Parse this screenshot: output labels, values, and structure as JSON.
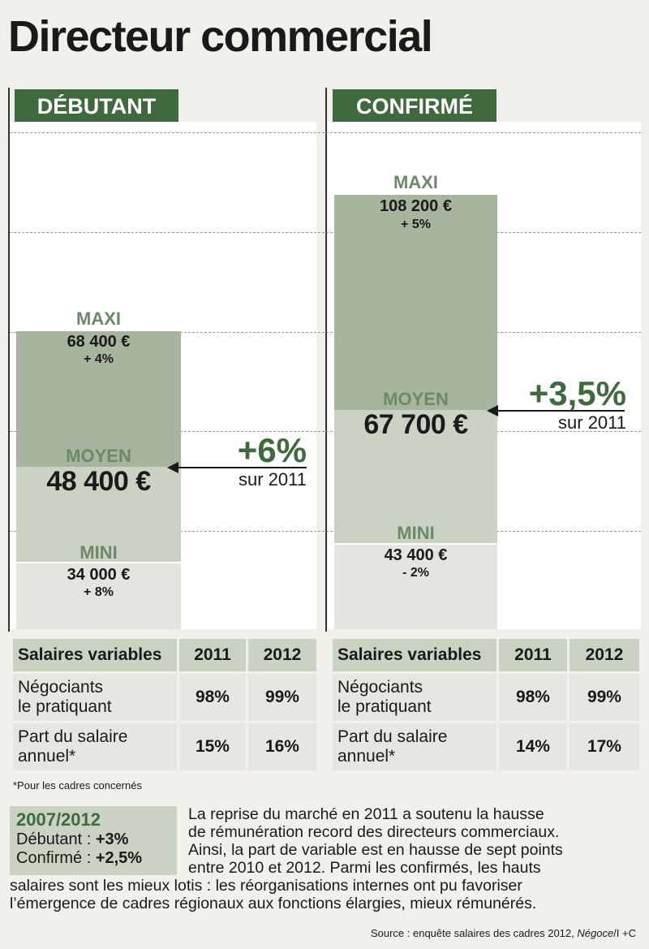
{
  "title": "Directeur commercial",
  "colors": {
    "dark_green": "#3f6a3d",
    "mid_green": "#a7b59f",
    "light_green": "#c9d2c3",
    "pale": "#e3e6de"
  },
  "chart_data": [
    {
      "type": "bar",
      "title": "DÉBUTANT",
      "segments": [
        {
          "label": "MAXI",
          "value": 68400,
          "value_text": "68 400 €",
          "change": "+ 4%"
        },
        {
          "label": "MOYEN",
          "value": 48400,
          "value_text": "48 400 €"
        },
        {
          "label": "MINI",
          "value": 34000,
          "value_text": "34 000 €",
          "change": "+ 8%"
        }
      ],
      "average_change": "+6%",
      "average_change_ref": "sur 2011"
    },
    {
      "type": "bar",
      "title": "CONFIRMÉ",
      "segments": [
        {
          "label": "MAXI",
          "value": 108200,
          "value_text": "108 200 €",
          "change": "+ 5%"
        },
        {
          "label": "MOYEN",
          "value": 67700,
          "value_text": "67 700 €"
        },
        {
          "label": "MINI",
          "value": 43400,
          "value_text": "43 400 €",
          "change": "- 2%"
        }
      ],
      "average_change": "+3,5%",
      "average_change_ref": "sur 2011"
    }
  ],
  "tables": [
    {
      "header": [
        "Salaires variables",
        "2011",
        "2012"
      ],
      "rows": [
        {
          "label_line1": "Négociants",
          "label_line2": "le pratiquant",
          "v2011": "98%",
          "v2012": "99%"
        },
        {
          "label_line1": "Part du salaire",
          "label_line2": "annuel*",
          "v2011": "15%",
          "v2012": "16%"
        }
      ]
    },
    {
      "header": [
        "Salaires variables",
        "2011",
        "2012"
      ],
      "rows": [
        {
          "label_line1": "Négociants",
          "label_line2": "le pratiquant",
          "v2011": "98%",
          "v2012": "99%"
        },
        {
          "label_line1": "Part du salaire",
          "label_line2": "annuel*",
          "v2011": "14%",
          "v2012": "17%"
        }
      ]
    }
  ],
  "footnote": "*Pour les cadres concernés",
  "summary": {
    "title": "2007/2012",
    "debutant_label": "Débutant : ",
    "debutant_value": "+3%",
    "confirme_label": "Confirmé : ",
    "confirme_value": "+2,5%"
  },
  "paragraph": [
    "La reprise du marché en 2011 a soutenu la hausse",
    "de rémunération record des directeurs commerciaux.",
    "Ainsi, la part de variable est en hausse de sept points",
    "entre 2010 et 2012. Parmi les confirmés, les hauts",
    "salaires sont les mieux lotis : les réorganisations internes ont pu favoriser",
    "l’émergence de cadres régionaux aux fonctions élargies, mieux rémunérés."
  ],
  "source_text": "Source : enquête salaires des cadres 2012, ",
  "source_pub": "Négoce",
  "source_tail": "/I +C"
}
